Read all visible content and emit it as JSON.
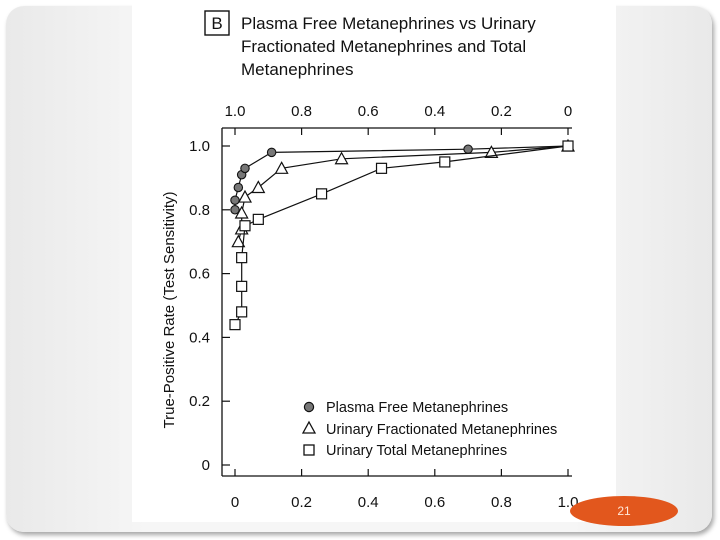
{
  "colors": {
    "slide_background": "#f4f4f4",
    "accent": "#e2571d",
    "ink": "#111111"
  },
  "figure": {
    "panel_letter": "B",
    "title_lines": [
      "Plasma Free Metanephrines vs Urinary",
      "Fractionated Metanephrines and Total",
      "Metanephrines"
    ]
  },
  "chart_data": {
    "type": "line",
    "title": "Plasma Free Metanephrines vs Urinary Fractionated Metanephrines and Total Metanephrines",
    "ylabel": "True-Positive Rate (Test Sensitivity)",
    "xlabel": "",
    "xlim": [
      0,
      1.0
    ],
    "ylim": [
      0,
      1.0
    ],
    "x_ticks": [
      "0",
      "0.2",
      "0.4",
      "0.6",
      "0.8",
      "1.0"
    ],
    "top_x_ticks": [
      "1.0",
      "0.8",
      "0.6",
      "0.4",
      "0.2",
      "0"
    ],
    "y_ticks": [
      "0",
      "0.2",
      "0.4",
      "0.6",
      "0.8",
      "1.0"
    ],
    "legend_position": "bottom-right",
    "series": [
      {
        "name": "Plasma Free Metanephrines",
        "marker": "circle",
        "x": [
          0.0,
          0.0,
          0.01,
          0.02,
          0.03,
          0.11,
          0.7,
          1.0
        ],
        "y": [
          0.8,
          0.83,
          0.87,
          0.91,
          0.93,
          0.98,
          0.99,
          1.0
        ]
      },
      {
        "name": "Urinary Fractionated Metanephrines",
        "marker": "triangle",
        "x": [
          0.01,
          0.02,
          0.02,
          0.03,
          0.07,
          0.14,
          0.32,
          0.77,
          1.0
        ],
        "y": [
          0.7,
          0.74,
          0.79,
          0.84,
          0.87,
          0.93,
          0.96,
          0.98,
          1.0
        ]
      },
      {
        "name": "Urinary Total Metanephrines",
        "marker": "square",
        "x": [
          0.0,
          0.02,
          0.02,
          0.02,
          0.03,
          0.07,
          0.26,
          0.44,
          0.63,
          1.0
        ],
        "y": [
          0.44,
          0.48,
          0.56,
          0.65,
          0.75,
          0.77,
          0.85,
          0.93,
          0.95,
          1.0
        ]
      }
    ]
  },
  "footer": {
    "page_number": "21"
  }
}
